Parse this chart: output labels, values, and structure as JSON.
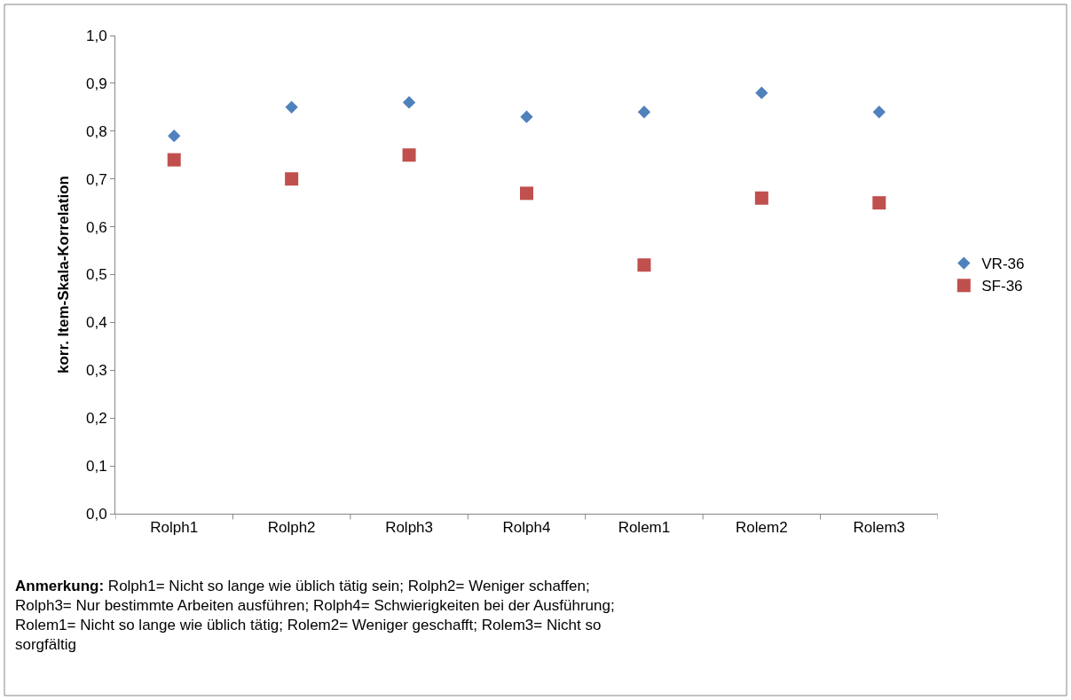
{
  "chart_data": {
    "type": "scatter",
    "ylabel": "korr. Item-Skala-Korrelation",
    "categories": [
      "Rolph1",
      "Rolph2",
      "Rolph3",
      "Rolph4",
      "Rolem1",
      "Rolem2",
      "Rolem3"
    ],
    "series": [
      {
        "name": "VR-36",
        "color": "#4f81bd",
        "marker": "diamond",
        "values": [
          0.79,
          0.85,
          0.86,
          0.83,
          0.84,
          0.88,
          0.84
        ]
      },
      {
        "name": "SF-36",
        "color": "#c0504d",
        "marker": "square",
        "values": [
          0.74,
          0.7,
          0.75,
          0.67,
          0.52,
          0.66,
          0.65
        ]
      }
    ],
    "ylim": [
      0,
      1
    ],
    "yticks": [
      {
        "value": 0,
        "label": "0,0"
      },
      {
        "value": 0.1,
        "label": "0,1"
      },
      {
        "value": 0.2,
        "label": "0,2"
      },
      {
        "value": 0.3,
        "label": "0,3"
      },
      {
        "value": 0.4,
        "label": "0,4"
      },
      {
        "value": 0.5,
        "label": "0,5"
      },
      {
        "value": 0.6,
        "label": "0,6"
      },
      {
        "value": 0.7,
        "label": "0,7"
      },
      {
        "value": 0.8,
        "label": "0,8"
      },
      {
        "value": 0.9,
        "label": "0,9"
      },
      {
        "value": 1,
        "label": "1,0"
      }
    ],
    "legend": "right",
    "annotations": [
      "Anmerkung: Rolph1= Nicht so lange wie üblich tätig sein; Rolph2= Weniger schaffen; Rolph3= Nur bestimmte Arbeiten ausführen; Rolph4= Schwierigkeiten bei der Ausführung; Rolem1= Nicht so lange wie üblich tätig; Rolem2= Weniger geschafft; Rolem3= Nicht so sorgfältig"
    ]
  }
}
